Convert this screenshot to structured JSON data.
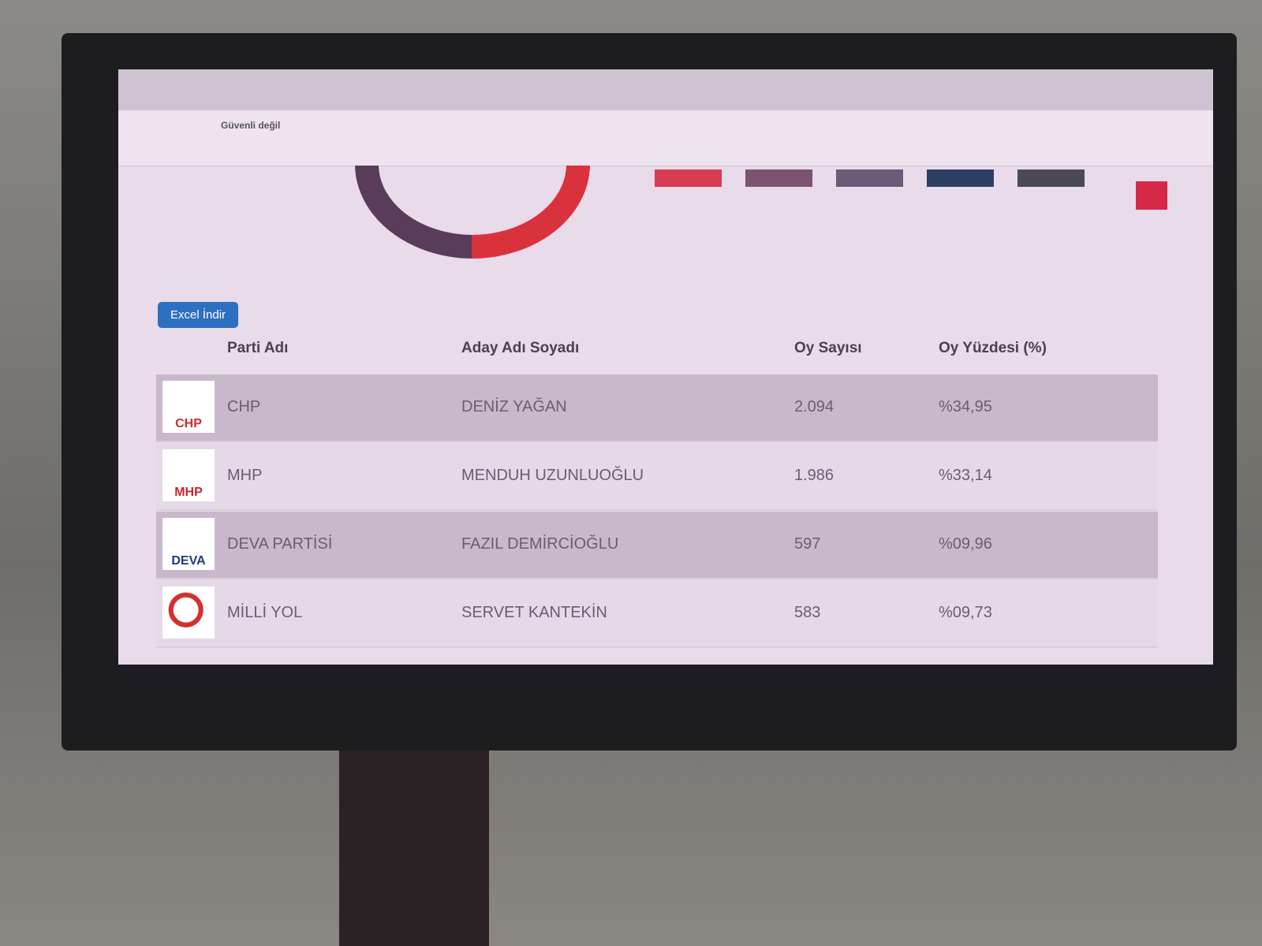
{
  "browser": {
    "security": "Güvenli değil"
  },
  "section": {
    "button": "Excel İndir"
  },
  "table": {
    "headers": [
      "Parti Adı",
      "Aday Adı Soyadı",
      "Oy Sayısı",
      "Oy Yüzdesi (%)"
    ],
    "rows": [
      {
        "logo": "CHP",
        "party": "CHP",
        "candidate": "DENİZ YAĞAN",
        "votes": "2.094",
        "percent": "%34,95"
      },
      {
        "logo": "MHP",
        "party": "MHP",
        "candidate": "MENDUH UZUNLUOĞLU",
        "votes": "1.986",
        "percent": "%33,14"
      },
      {
        "logo": "DEVA",
        "party": "DEVA PARTİSİ",
        "candidate": "FAZIL DEMİRCİOĞLU",
        "votes": "597",
        "percent": "%09,96"
      },
      {
        "party": "MİLLİ YOL",
        "candidate": "SERVET KANTEKİN",
        "votes": "583",
        "percent": "%09,73"
      }
    ]
  }
}
